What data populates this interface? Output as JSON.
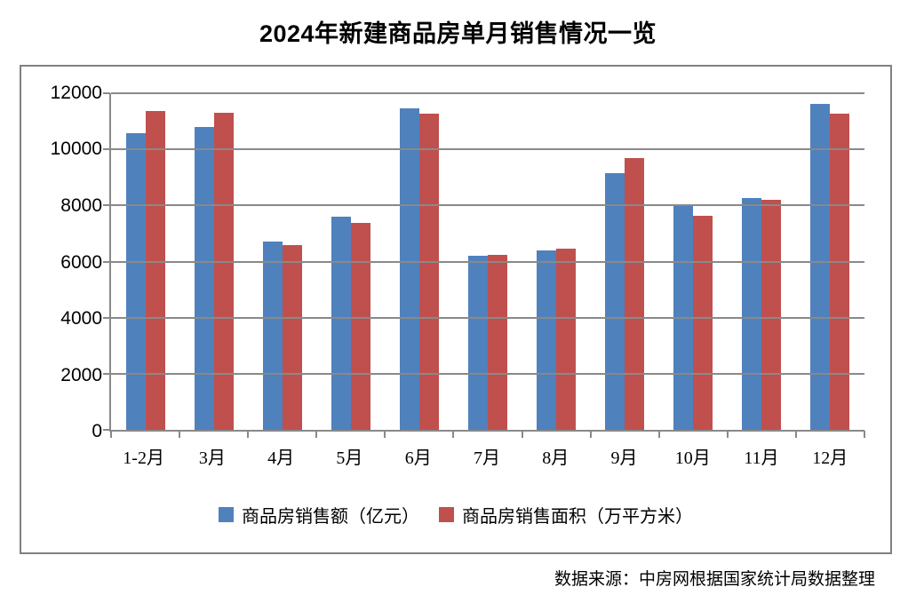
{
  "title": "2024年新建商品房单月销售情况一览",
  "source_note": "数据来源：中房网根据国家统计局数据整理",
  "colors": {
    "series_amount": "#4F81BD",
    "series_area": "#C0504D",
    "grid": "#898989",
    "frame_border": "#808080",
    "text": "#000000",
    "background": "#FFFFFF"
  },
  "chart_data": {
    "type": "bar",
    "title": "2024年新建商品房单月销售情况一览",
    "categories": [
      "1-2月",
      "3月",
      "4月",
      "5月",
      "6月",
      "7月",
      "8月",
      "9月",
      "10月",
      "11月",
      "12月"
    ],
    "series": [
      {
        "key": "amount",
        "name": "商品房销售额（亿元）",
        "color_key": "series_amount",
        "values": [
          10566,
          10789,
          6712,
          7598,
          11468,
          6197,
          6393,
          9157,
          7975,
          8270,
          11625
        ]
      },
      {
        "key": "area",
        "name": "商品房销售面积（万平方米）",
        "color_key": "series_area",
        "values": [
          11369,
          11299,
          6584,
          7390,
          11274,
          6233,
          6453,
          9682,
          7646,
          8188,
          11267
        ]
      }
    ],
    "xlabel": "",
    "ylabel": "",
    "ylim": [
      0,
      12000
    ],
    "y_ticks": [
      0,
      2000,
      4000,
      6000,
      8000,
      10000,
      12000
    ],
    "grid": "horizontal",
    "legend_position": "bottom"
  }
}
